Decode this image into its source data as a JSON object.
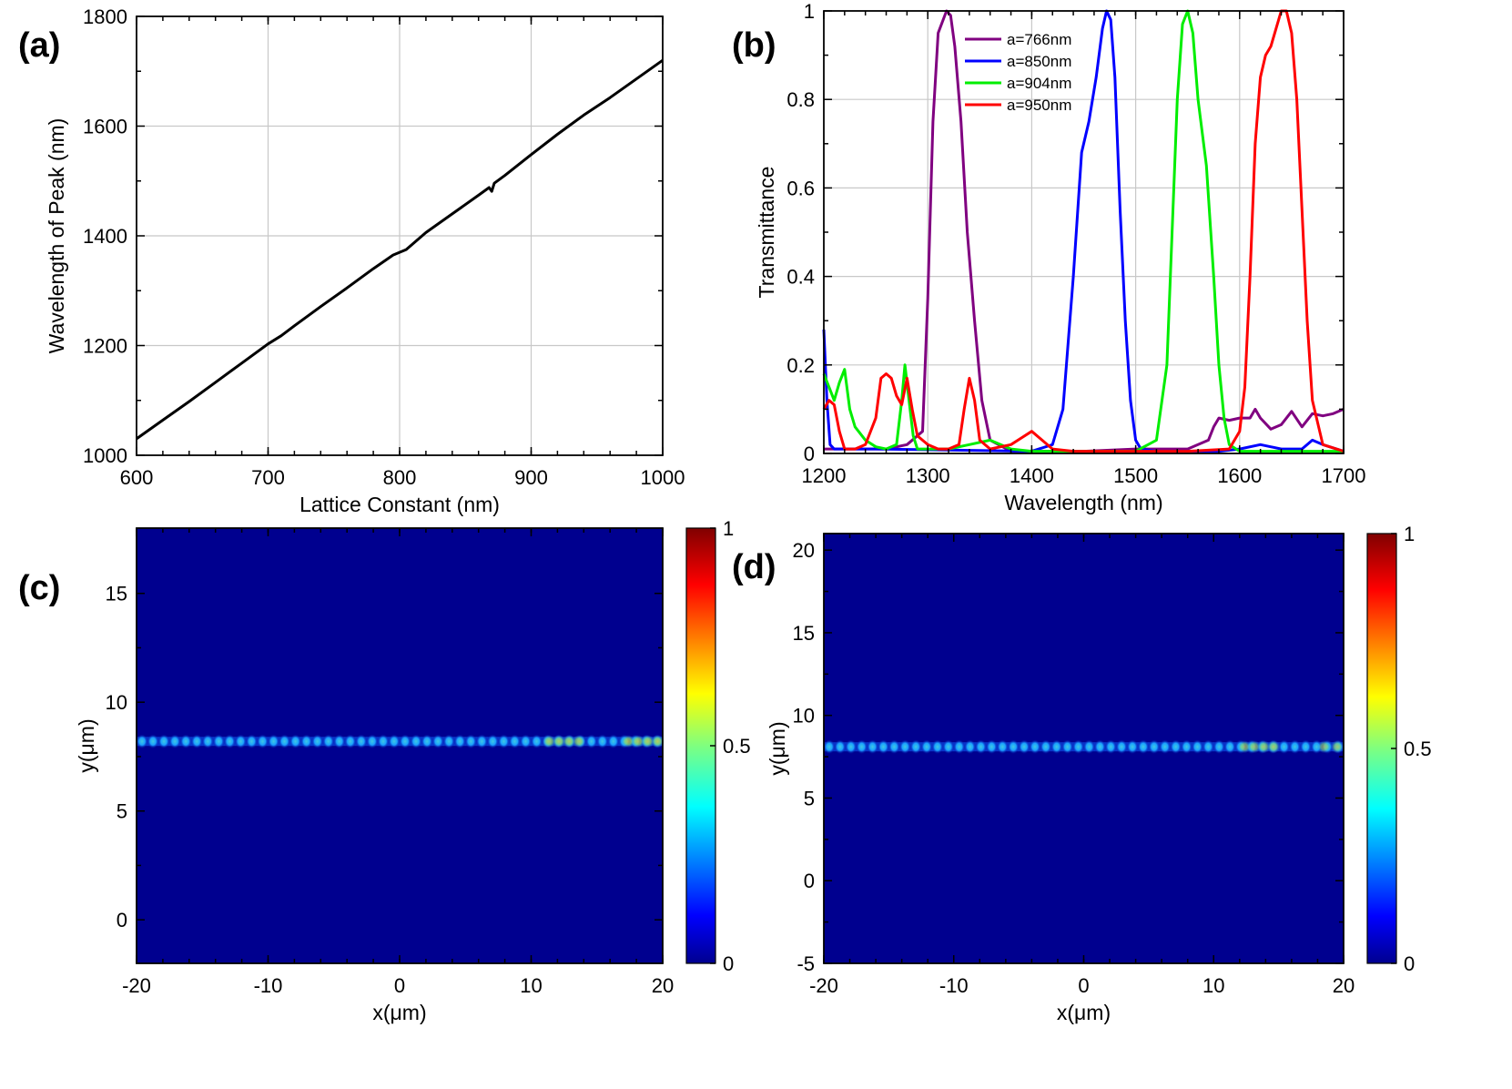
{
  "panels": [
    {
      "id": "a",
      "label": "(a)",
      "chart_data": {
        "type": "line",
        "xlabel": "Lattice Constant (nm)",
        "ylabel": "Wavelength of Peak (nm)",
        "xlim": [
          600,
          1000
        ],
        "ylim": [
          1000,
          1800
        ],
        "xticks": [
          600,
          700,
          800,
          900,
          1000
        ],
        "yticks": [
          1000,
          1200,
          1400,
          1600,
          1800
        ],
        "grid": true,
        "series": [
          {
            "color": "#000000",
            "x": [
              600,
              620,
              640,
              660,
              680,
              700,
              710,
              720,
              740,
              760,
              780,
              795,
              805,
              820,
              840,
              860,
              868,
              870,
              872,
              880,
              900,
              920,
              940,
              960,
              980,
              1000
            ],
            "y": [
              1030,
              1064,
              1098,
              1133,
              1168,
              1203,
              1218,
              1236,
              1271,
              1305,
              1340,
              1365,
              1375,
              1406,
              1440,
              1474,
              1488,
              1481,
              1496,
              1510,
              1548,
              1585,
              1620,
              1652,
              1686,
              1720
            ]
          }
        ]
      }
    },
    {
      "id": "b",
      "label": "(b)",
      "chart_data": {
        "type": "line",
        "xlabel": "Wavelength (nm)",
        "ylabel": "Transmittance",
        "xlim": [
          1200,
          1700
        ],
        "ylim": [
          0,
          1
        ],
        "xticks": [
          1200,
          1300,
          1400,
          1500,
          1600,
          1700
        ],
        "yticks": [
          0,
          0.2,
          0.4,
          0.6,
          0.8,
          1
        ],
        "grid": true,
        "legend": "top-left",
        "series": [
          {
            "name": "a=766nm",
            "color": "#800080",
            "x": [
              1200,
              1210,
              1230,
              1260,
              1280,
              1295,
              1300,
              1305,
              1310,
              1318,
              1322,
              1326,
              1332,
              1338,
              1345,
              1352,
              1360,
              1380,
              1450,
              1500,
              1550,
              1570,
              1575,
              1580,
              1590,
              1600,
              1610,
              1615,
              1620,
              1630,
              1640,
              1650,
              1660,
              1670,
              1680,
              1690,
              1700
            ],
            "y": [
              0.01,
              0.01,
              0.01,
              0.01,
              0.02,
              0.05,
              0.35,
              0.75,
              0.95,
              1.0,
              0.99,
              0.92,
              0.75,
              0.5,
              0.3,
              0.12,
              0.03,
              0.005,
              0.005,
              0.01,
              0.01,
              0.03,
              0.06,
              0.08,
              0.075,
              0.08,
              0.08,
              0.1,
              0.08,
              0.055,
              0.065,
              0.095,
              0.06,
              0.09,
              0.085,
              0.09,
              0.1
            ]
          },
          {
            "name": "a=850nm",
            "color": "#0000ff",
            "x": [
              1200,
              1203,
              1206,
              1210,
              1250,
              1400,
              1420,
              1430,
              1440,
              1448,
              1455,
              1462,
              1468,
              1472,
              1476,
              1480,
              1485,
              1490,
              1495,
              1500,
              1505,
              1520,
              1580,
              1600,
              1620,
              1640,
              1660,
              1670,
              1680,
              1700
            ],
            "y": [
              0.28,
              0.12,
              0.02,
              0.01,
              0.01,
              0.005,
              0.02,
              0.1,
              0.4,
              0.68,
              0.75,
              0.85,
              0.96,
              1.0,
              0.98,
              0.85,
              0.55,
              0.3,
              0.12,
              0.03,
              0.01,
              0.005,
              0.005,
              0.01,
              0.02,
              0.01,
              0.01,
              0.03,
              0.02,
              0.005
            ]
          },
          {
            "name": "a=904nm",
            "color": "#00ee00",
            "x": [
              1200,
              1205,
              1210,
              1215,
              1220,
              1225,
              1230,
              1240,
              1250,
              1260,
              1270,
              1275,
              1278,
              1282,
              1286,
              1290,
              1300,
              1320,
              1340,
              1360,
              1380,
              1400,
              1420,
              1500,
              1520,
              1530,
              1535,
              1540,
              1545,
              1550,
              1555,
              1560,
              1568,
              1575,
              1580,
              1585,
              1590,
              1600,
              1700
            ],
            "y": [
              0.18,
              0.15,
              0.12,
              0.16,
              0.19,
              0.1,
              0.06,
              0.03,
              0.015,
              0.01,
              0.02,
              0.12,
              0.2,
              0.12,
              0.04,
              0.01,
              0.01,
              0.01,
              0.02,
              0.03,
              0.01,
              0.005,
              0.005,
              0.005,
              0.03,
              0.2,
              0.5,
              0.8,
              0.97,
              1.0,
              0.95,
              0.8,
              0.65,
              0.4,
              0.2,
              0.08,
              0.02,
              0.005,
              0.005
            ]
          },
          {
            "name": "a=950nm",
            "color": "#ff0000",
            "x": [
              1200,
              1205,
              1210,
              1215,
              1220,
              1230,
              1240,
              1250,
              1255,
              1260,
              1265,
              1270,
              1275,
              1280,
              1285,
              1290,
              1300,
              1310,
              1320,
              1330,
              1335,
              1340,
              1345,
              1350,
              1360,
              1380,
              1390,
              1400,
              1410,
              1420,
              1440,
              1500,
              1550,
              1590,
              1600,
              1605,
              1610,
              1615,
              1620,
              1625,
              1630,
              1635,
              1640,
              1645,
              1650,
              1655,
              1660,
              1665,
              1670,
              1680,
              1700
            ],
            "y": [
              0.1,
              0.12,
              0.11,
              0.05,
              0.01,
              0.01,
              0.02,
              0.08,
              0.17,
              0.18,
              0.17,
              0.13,
              0.11,
              0.17,
              0.1,
              0.04,
              0.02,
              0.01,
              0.01,
              0.02,
              0.1,
              0.17,
              0.12,
              0.03,
              0.01,
              0.02,
              0.035,
              0.05,
              0.03,
              0.01,
              0.005,
              0.005,
              0.005,
              0.01,
              0.05,
              0.15,
              0.4,
              0.7,
              0.85,
              0.9,
              0.92,
              0.96,
              1.0,
              1.0,
              0.95,
              0.8,
              0.55,
              0.3,
              0.12,
              0.02,
              0.005
            ]
          }
        ]
      }
    },
    {
      "id": "c",
      "label": "(c)",
      "chart_data": {
        "type": "heatmap",
        "xlabel": "x(μm)",
        "ylabel": "y(μm)",
        "xlim": [
          -20,
          20
        ],
        "ylim": [
          -2,
          18
        ],
        "xticks": [
          -20,
          -10,
          0,
          10,
          20
        ],
        "yticks": [
          0,
          5,
          10,
          15
        ],
        "colorbar": {
          "ticks": [
            0,
            0.5,
            1
          ],
          "range": [
            0,
            1
          ]
        },
        "waveguide_y": 8.2,
        "hot_spots": [
          {
            "x0": 11,
            "x1": 14,
            "value": 0.65
          },
          {
            "x0": 17,
            "x1": 20,
            "value": 0.7
          }
        ]
      }
    },
    {
      "id": "d",
      "label": "(d)",
      "chart_data": {
        "type": "heatmap",
        "xlabel": "x(μm)",
        "ylabel": "y(μm)",
        "xlim": [
          -20,
          20
        ],
        "ylim": [
          -5,
          21
        ],
        "xticks": [
          -20,
          -10,
          0,
          10,
          20
        ],
        "yticks": [
          -5,
          0,
          5,
          10,
          15,
          20
        ],
        "colorbar": {
          "ticks": [
            0,
            0.5,
            1
          ],
          "range": [
            0,
            1
          ]
        },
        "waveguide_y": 8.1,
        "hot_spots": [
          {
            "x0": 12,
            "x1": 15,
            "value": 0.6
          },
          {
            "x0": 18,
            "x1": 20,
            "value": 0.55
          }
        ]
      }
    }
  ]
}
